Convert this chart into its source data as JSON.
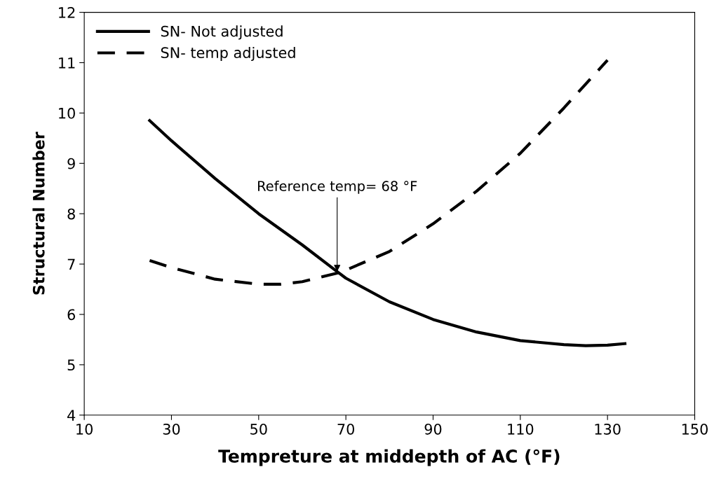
{
  "chart_data": {
    "type": "line",
    "xlabel": "Tempreture at middepth of AC (°F)",
    "ylabel": "Structural Number",
    "xlim": [
      10,
      150
    ],
    "xticks": [
      10,
      30,
      50,
      70,
      90,
      110,
      130,
      150
    ],
    "ylim": [
      4,
      12
    ],
    "yticks": [
      4,
      5,
      6,
      7,
      8,
      9,
      10,
      11,
      12
    ],
    "grid": false,
    "legend": "top left",
    "marker": "none",
    "series": [
      {
        "name": "SN- Not adjusted",
        "color": "#000000",
        "line_style": "solid",
        "x": [
          25,
          30,
          40,
          50,
          60,
          68,
          70,
          80,
          90,
          100,
          110,
          120,
          125,
          130,
          134
        ],
        "values": [
          9.85,
          9.45,
          8.7,
          8.0,
          7.38,
          6.85,
          6.72,
          6.25,
          5.9,
          5.65,
          5.48,
          5.4,
          5.38,
          5.39,
          5.42
        ]
      },
      {
        "name": "SN- temp adjusted",
        "color": "#000000",
        "line_style": "dashed",
        "x": [
          25,
          30,
          40,
          50,
          55,
          60,
          68,
          70,
          80,
          90,
          100,
          110,
          120,
          130
        ],
        "values": [
          7.07,
          6.93,
          6.7,
          6.6,
          6.6,
          6.65,
          6.82,
          6.88,
          7.25,
          7.8,
          8.45,
          9.2,
          10.1,
          11.05
        ]
      }
    ],
    "annotations": [
      {
        "text": "Reference temp= 68 °F",
        "x": 68,
        "y": 6.85
      }
    ]
  }
}
